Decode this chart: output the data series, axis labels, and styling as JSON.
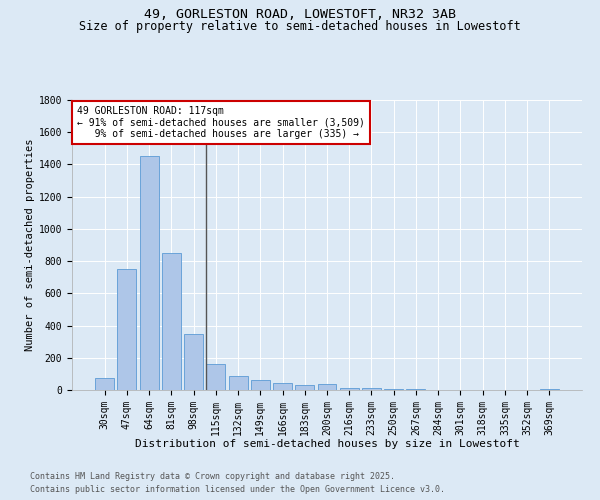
{
  "title1": "49, GORLESTON ROAD, LOWESTOFT, NR32 3AB",
  "title2": "Size of property relative to semi-detached houses in Lowestoft",
  "xlabel": "Distribution of semi-detached houses by size in Lowestoft",
  "ylabel": "Number of semi-detached properties",
  "categories": [
    "30sqm",
    "47sqm",
    "64sqm",
    "81sqm",
    "98sqm",
    "115sqm",
    "132sqm",
    "149sqm",
    "166sqm",
    "183sqm",
    "200sqm",
    "216sqm",
    "233sqm",
    "250sqm",
    "267sqm",
    "284sqm",
    "301sqm",
    "318sqm",
    "335sqm",
    "352sqm",
    "369sqm"
  ],
  "values": [
    75,
    750,
    1450,
    850,
    350,
    160,
    90,
    60,
    45,
    30,
    35,
    15,
    10,
    5,
    5,
    2,
    2,
    2,
    2,
    2,
    5
  ],
  "bar_color": "#aec6e8",
  "bar_edge_color": "#5b9bd5",
  "vline_color": "#555555",
  "annotation_text": "49 GORLESTON ROAD: 117sqm\n← 91% of semi-detached houses are smaller (3,509)\n   9% of semi-detached houses are larger (335) →",
  "annotation_box_color": "#ffffff",
  "annotation_box_edge": "#cc0000",
  "footer1": "Contains HM Land Registry data © Crown copyright and database right 2025.",
  "footer2": "Contains public sector information licensed under the Open Government Licence v3.0.",
  "bg_color": "#dce9f5",
  "ylim": [
    0,
    1800
  ],
  "yticks": [
    0,
    200,
    400,
    600,
    800,
    1000,
    1200,
    1400,
    1600,
    1800
  ],
  "title1_fontsize": 9.5,
  "title2_fontsize": 8.5,
  "xlabel_fontsize": 8,
  "ylabel_fontsize": 7.5,
  "tick_fontsize": 7,
  "annot_fontsize": 7,
  "footer_fontsize": 6
}
